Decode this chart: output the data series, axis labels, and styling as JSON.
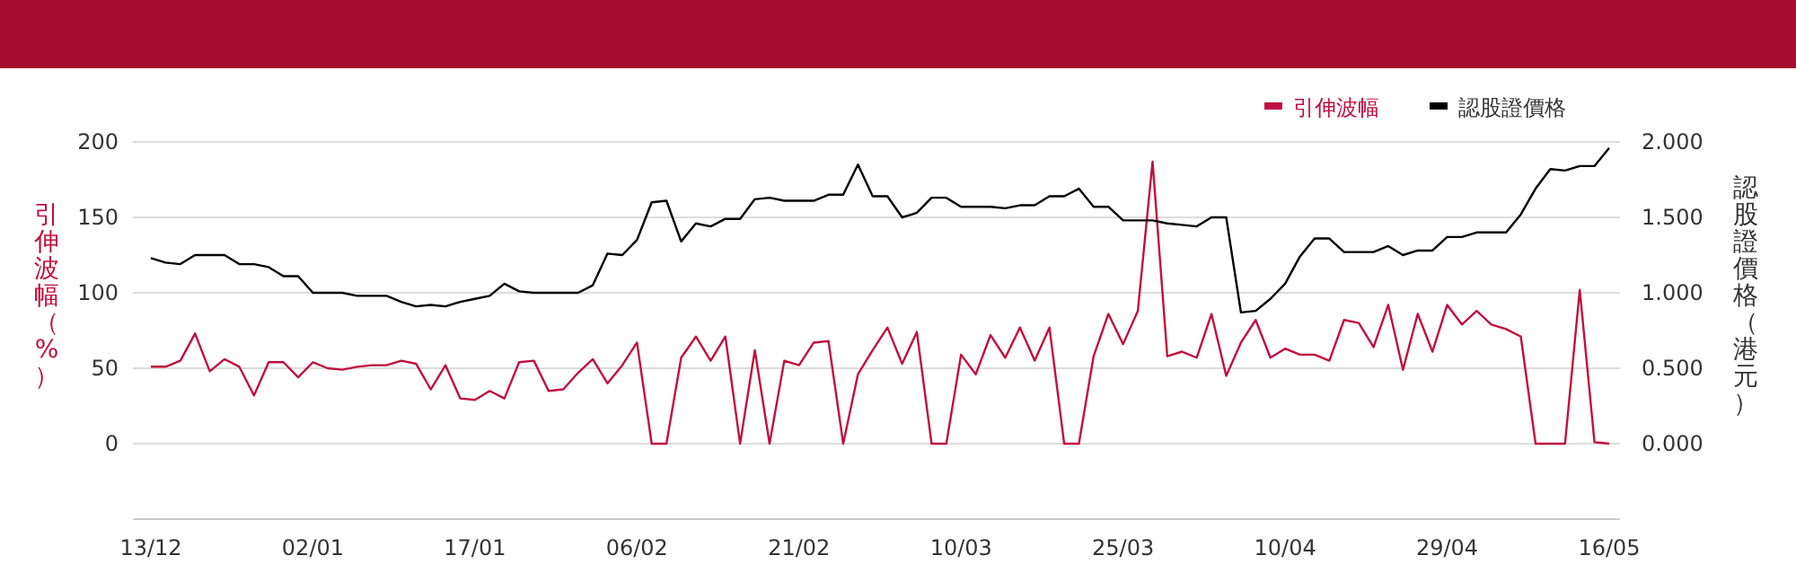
{
  "chart_data": {
    "type": "line",
    "ylabel": "引伸波幅（%）",
    "y2label": "認股證價格（港元）",
    "categories": [
      "13/12",
      null,
      null,
      null,
      null,
      null,
      null,
      null,
      null,
      null,
      null,
      "02/01",
      null,
      null,
      null,
      null,
      null,
      null,
      null,
      null,
      null,
      null,
      "17/01",
      null,
      null,
      null,
      null,
      null,
      null,
      null,
      null,
      null,
      null,
      "06/02",
      null,
      null,
      null,
      null,
      null,
      null,
      null,
      null,
      null,
      null,
      "21/02",
      null,
      null,
      null,
      null,
      null,
      null,
      null,
      null,
      null,
      null,
      "10/03",
      null,
      null,
      null,
      null,
      null,
      null,
      null,
      null,
      null,
      null,
      "25/03",
      null,
      null,
      null,
      null,
      null,
      null,
      null,
      null,
      null,
      null,
      "10/04",
      null,
      null,
      null,
      null,
      null,
      null,
      null,
      null,
      null,
      null,
      "29/04",
      null,
      null,
      null,
      null,
      null,
      null,
      null,
      null,
      null,
      null,
      "16/05"
    ],
    "series": [
      {
        "name": "引伸波幅",
        "color": "#c0103f",
        "axis": "y",
        "values": [
          51,
          51,
          55,
          73,
          48,
          56,
          51,
          32,
          54,
          54,
          44,
          54,
          50,
          49,
          51,
          52,
          52,
          55,
          53,
          36,
          52,
          30,
          29,
          35,
          30,
          54,
          55,
          35,
          36,
          47,
          56,
          40,
          52,
          67,
          0,
          0,
          57,
          71,
          55,
          71,
          0,
          62,
          0,
          55,
          52,
          67,
          68,
          0,
          46,
          62,
          77,
          53,
          74,
          0,
          0,
          59,
          46,
          72,
          57,
          77,
          55,
          77,
          0,
          0,
          58,
          86,
          66,
          88,
          187,
          58,
          61,
          57,
          86,
          45,
          67,
          82,
          57,
          63,
          59,
          59,
          55,
          82,
          80,
          64,
          92,
          49,
          86,
          61,
          92,
          79,
          88,
          79,
          76,
          71,
          0,
          0,
          0,
          102,
          1,
          0
        ]
      },
      {
        "name": "認股證價格",
        "color": "#000000",
        "axis": "y2",
        "values": [
          1.23,
          1.2,
          1.19,
          1.25,
          1.25,
          1.25,
          1.19,
          1.19,
          1.17,
          1.11,
          1.11,
          1.0,
          1.0,
          1.0,
          0.98,
          0.98,
          0.98,
          0.94,
          0.91,
          0.92,
          0.91,
          0.94,
          0.96,
          0.98,
          1.06,
          1.01,
          1.0,
          1.0,
          1.0,
          1.0,
          1.05,
          1.26,
          1.25,
          1.35,
          1.6,
          1.61,
          1.34,
          1.46,
          1.44,
          1.49,
          1.49,
          1.62,
          1.63,
          1.61,
          1.61,
          1.61,
          1.65,
          1.65,
          1.85,
          1.64,
          1.64,
          1.5,
          1.53,
          1.63,
          1.63,
          1.57,
          1.57,
          1.57,
          1.56,
          1.58,
          1.58,
          1.64,
          1.64,
          1.69,
          1.57,
          1.57,
          1.48,
          1.48,
          1.48,
          1.46,
          1.45,
          1.44,
          1.5,
          1.5,
          0.87,
          0.88,
          0.96,
          1.06,
          1.24,
          1.36,
          1.36,
          1.27,
          1.27,
          1.27,
          1.31,
          1.25,
          1.28,
          1.28,
          1.37,
          1.37,
          1.4,
          1.4,
          1.4,
          1.52,
          1.69,
          1.82,
          1.81,
          1.84,
          1.84,
          1.96
        ]
      }
    ],
    "ylim": [
      -50,
      200
    ],
    "yticks": [
      0,
      50,
      100,
      150,
      200
    ],
    "y2lim": [
      -0.5,
      2.0
    ],
    "y2ticks": [
      {
        "value": 0,
        "label": "0.000"
      },
      {
        "value": 0.5,
        "label": "0.500"
      },
      {
        "value": 1,
        "label": "1.000"
      },
      {
        "value": 1.5,
        "label": "1.500"
      },
      {
        "value": 2,
        "label": "2.000"
      }
    ],
    "grid": "y",
    "legend": "top right"
  }
}
